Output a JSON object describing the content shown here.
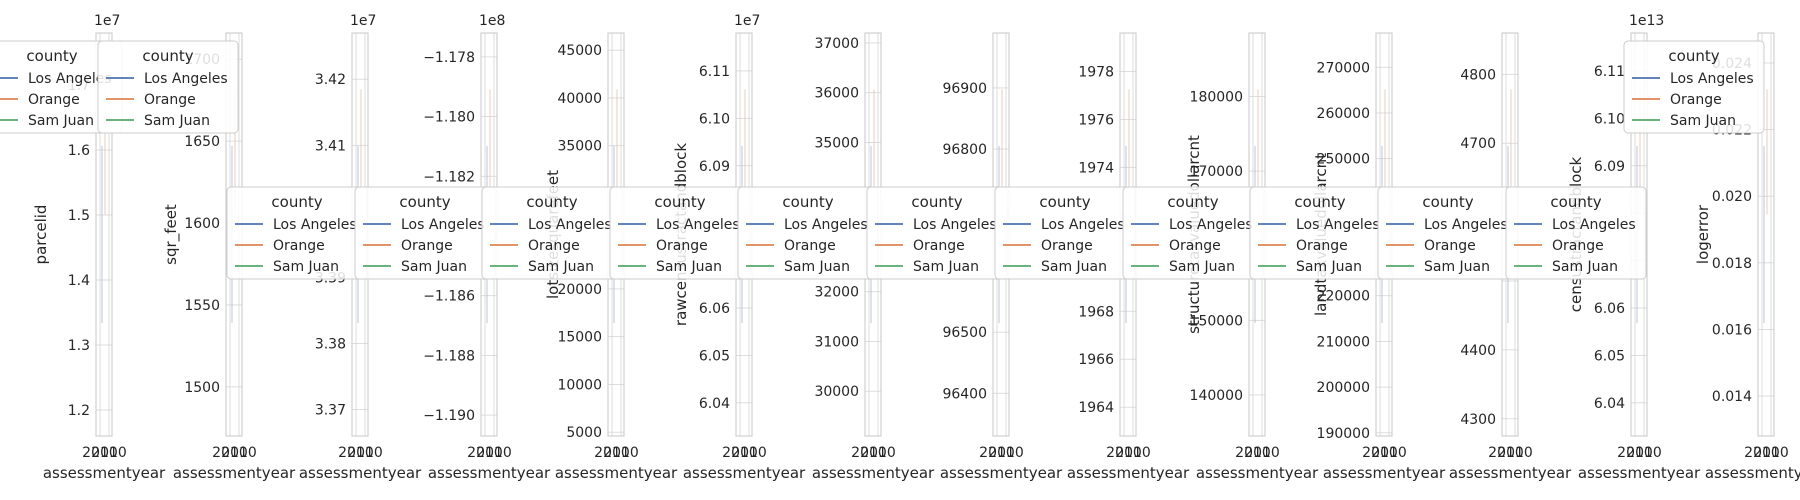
{
  "legend": {
    "title": "county",
    "entries": [
      {
        "label": "Los Angeles",
        "color": "#4c72b0"
      },
      {
        "label": "Orange",
        "color": "#dd8452"
      },
      {
        "label": "Sam Juan",
        "color": "#55a868"
      }
    ]
  },
  "chart_data": [
    {
      "type": "line",
      "xlabel": "assessmentyear",
      "ylabel": "parcelid",
      "offset": "1e7",
      "x_ticks": [
        "2010",
        "2010"
      ],
      "y_ticks": [
        {
          "value": 1.2,
          "label": "1.2"
        },
        {
          "value": 1.3,
          "label": "1.3"
        },
        {
          "value": 1.4,
          "label": "1.4"
        },
        {
          "value": 1.5,
          "label": "1.5"
        },
        {
          "value": 1.6,
          "label": "1.6"
        },
        {
          "value": 1.7,
          "label": "1.7"
        }
      ],
      "ylim": [
        1.16,
        1.78
      ],
      "legend": "top-left"
    },
    {
      "type": "line",
      "xlabel": "assessmentyear",
      "ylabel": "sqr_feet",
      "offset": "",
      "x_ticks": [
        "2010",
        "2010"
      ],
      "y_ticks": [
        {
          "value": 1500,
          "label": "1500"
        },
        {
          "value": 1550,
          "label": "1550"
        },
        {
          "value": 1600,
          "label": "1600"
        },
        {
          "value": 1650,
          "label": "1650"
        },
        {
          "value": 1700,
          "label": "1700"
        }
      ],
      "ylim": [
        1470,
        1716
      ],
      "legend": "top-left"
    },
    {
      "type": "line",
      "xlabel": "assessmentyear",
      "ylabel": "",
      "offset": "1e7",
      "x_ticks": [
        "2010",
        "2010"
      ],
      "y_ticks": [
        {
          "value": 3.37,
          "label": "3.37"
        },
        {
          "value": 3.38,
          "label": "3.38"
        },
        {
          "value": 3.39,
          "label": "3.39"
        },
        {
          "value": 3.4,
          "label": ""
        },
        {
          "value": 3.41,
          "label": "3.41"
        },
        {
          "value": 3.42,
          "label": "3.42"
        }
      ],
      "ylim": [
        3.366,
        3.427
      ],
      "legend": "center-left"
    },
    {
      "type": "line",
      "xlabel": "assessmentyear",
      "ylabel": "",
      "offset": "1e8",
      "x_ticks": [
        "2010",
        "2010"
      ],
      "y_ticks": [
        {
          "value": -1.19,
          "label": "−1.190"
        },
        {
          "value": -1.188,
          "label": "−1.188"
        },
        {
          "value": -1.186,
          "label": "−1.186"
        },
        {
          "value": -1.184,
          "label": ""
        },
        {
          "value": -1.182,
          "label": "−1.182"
        },
        {
          "value": -1.18,
          "label": "−1.180"
        },
        {
          "value": -1.178,
          "label": "−1.178"
        }
      ],
      "ylim": [
        -1.1907,
        -1.1772
      ],
      "legend": "center-left"
    },
    {
      "type": "line",
      "xlabel": "assessmentyear",
      "ylabel": "lotsizesquarefeet",
      "offset": "",
      "x_ticks": [
        "2010",
        "2010"
      ],
      "y_ticks": [
        {
          "value": 5000,
          "label": "5000"
        },
        {
          "value": 10000,
          "label": "10000"
        },
        {
          "value": 15000,
          "label": "15000"
        },
        {
          "value": 20000,
          "label": "20000"
        },
        {
          "value": 25000,
          "label": ""
        },
        {
          "value": 30000,
          "label": ""
        },
        {
          "value": 35000,
          "label": "35000"
        },
        {
          "value": 40000,
          "label": "40000"
        },
        {
          "value": 45000,
          "label": "45000"
        }
      ],
      "ylim": [
        4600,
        46800
      ],
      "legend": "center-left"
    },
    {
      "type": "line",
      "xlabel": "assessmentyear",
      "ylabel": "rawcensustractandblock",
      "offset": "1e7",
      "x_ticks": [
        "2010",
        "2010"
      ],
      "y_ticks": [
        {
          "value": 6.04,
          "label": "6.04"
        },
        {
          "value": 6.05,
          "label": "6.05"
        },
        {
          "value": 6.06,
          "label": "6.06"
        },
        {
          "value": 6.07,
          "label": ""
        },
        {
          "value": 6.08,
          "label": ""
        },
        {
          "value": 6.09,
          "label": "6.09"
        },
        {
          "value": 6.1,
          "label": "6.10"
        },
        {
          "value": 6.11,
          "label": "6.11"
        }
      ],
      "ylim": [
        6.033,
        6.118
      ],
      "legend": "center-left"
    },
    {
      "type": "line",
      "xlabel": "assessmentyear",
      "ylabel": "",
      "offset": "",
      "x_ticks": [
        "2010",
        "2010"
      ],
      "y_ticks": [
        {
          "value": 30000,
          "label": "30000"
        },
        {
          "value": 31000,
          "label": "31000"
        },
        {
          "value": 32000,
          "label": "32000"
        },
        {
          "value": 33000,
          "label": ""
        },
        {
          "value": 34000,
          "label": ""
        },
        {
          "value": 35000,
          "label": "35000"
        },
        {
          "value": 36000,
          "label": "36000"
        },
        {
          "value": 37000,
          "label": "37000"
        }
      ],
      "ylim": [
        29100,
        37200
      ],
      "legend": "center-left"
    },
    {
      "type": "line",
      "xlabel": "assessmentyear",
      "ylabel": "",
      "offset": "",
      "x_ticks": [
        "2010",
        "2010"
      ],
      "y_ticks": [
        {
          "value": 96400,
          "label": "96400"
        },
        {
          "value": 96500,
          "label": "96500"
        },
        {
          "value": 96600,
          "label": ""
        },
        {
          "value": 96700,
          "label": ""
        },
        {
          "value": 96800,
          "label": "96800"
        },
        {
          "value": 96900,
          "label": "96900"
        }
      ],
      "ylim": [
        96330,
        96990
      ],
      "legend": "center-left"
    },
    {
      "type": "line",
      "xlabel": "assessmentyear",
      "ylabel": "",
      "offset": "",
      "x_ticks": [
        "2010",
        "2010"
      ],
      "y_ticks": [
        {
          "value": 1964,
          "label": "1964"
        },
        {
          "value": 1966,
          "label": "1966"
        },
        {
          "value": 1968,
          "label": "1968"
        },
        {
          "value": 1970,
          "label": ""
        },
        {
          "value": 1972,
          "label": ""
        },
        {
          "value": 1974,
          "label": "1974"
        },
        {
          "value": 1976,
          "label": "1976"
        },
        {
          "value": 1978,
          "label": "1978"
        }
      ],
      "ylim": [
        1962.8,
        1979.6
      ],
      "legend": "center-left"
    },
    {
      "type": "line",
      "xlabel": "assessmentyear",
      "ylabel": "structuretaxvaluedollarcnt",
      "offset": "",
      "x_ticks": [
        "2010",
        "2010"
      ],
      "y_ticks": [
        {
          "value": 140000,
          "label": "140000"
        },
        {
          "value": 150000,
          "label": "150000"
        },
        {
          "value": 160000,
          "label": ""
        },
        {
          "value": 170000,
          "label": "170000"
        },
        {
          "value": 180000,
          "label": "180000"
        }
      ],
      "ylim": [
        134500,
        188500
      ],
      "legend": "center-left"
    },
    {
      "type": "line",
      "xlabel": "assessmentyear",
      "ylabel": "landtaxvaluedollarcnt",
      "offset": "",
      "x_ticks": [
        "2010",
        "2010"
      ],
      "y_ticks": [
        {
          "value": 190000,
          "label": "190000"
        },
        {
          "value": 200000,
          "label": "200000"
        },
        {
          "value": 210000,
          "label": "210000"
        },
        {
          "value": 220000,
          "label": "220000"
        },
        {
          "value": 230000,
          "label": ""
        },
        {
          "value": 240000,
          "label": ""
        },
        {
          "value": 250000,
          "label": "250000"
        },
        {
          "value": 260000,
          "label": "260000"
        },
        {
          "value": 270000,
          "label": "270000"
        }
      ],
      "ylim": [
        189300,
        277500
      ],
      "legend": "center-left"
    },
    {
      "type": "line",
      "xlabel": "assessmentyear",
      "ylabel": "",
      "offset": "",
      "x_ticks": [
        "2010",
        "2010"
      ],
      "y_ticks": [
        {
          "value": 4300,
          "label": "4300"
        },
        {
          "value": 4400,
          "label": "4400"
        },
        {
          "value": 4500,
          "label": ""
        },
        {
          "value": 4600,
          "label": ""
        },
        {
          "value": 4700,
          "label": "4700"
        },
        {
          "value": 4800,
          "label": "4800"
        }
      ],
      "ylim": [
        4275,
        4860
      ],
      "legend": "center-left"
    },
    {
      "type": "line",
      "xlabel": "assessmentyear",
      "ylabel": "censustractandblock",
      "offset": "1e13",
      "x_ticks": [
        "2010",
        "2010"
      ],
      "y_ticks": [
        {
          "value": 6.04,
          "label": "6.04"
        },
        {
          "value": 6.05,
          "label": "6.05"
        },
        {
          "value": 6.06,
          "label": "6.06"
        },
        {
          "value": 6.07,
          "label": ""
        },
        {
          "value": 6.08,
          "label": ""
        },
        {
          "value": 6.09,
          "label": "6.09"
        },
        {
          "value": 6.1,
          "label": "6.10"
        },
        {
          "value": 6.11,
          "label": "6.11"
        }
      ],
      "ylim": [
        6.033,
        6.118
      ],
      "legend": "center-left"
    },
    {
      "type": "line",
      "xlabel": "assessmentyear",
      "ylabel": "logerror",
      "offset": "",
      "x_ticks": [
        "2010",
        "2010"
      ],
      "y_ticks": [
        {
          "value": 0.014,
          "label": "0.014"
        },
        {
          "value": 0.016,
          "label": "0.016"
        },
        {
          "value": 0.018,
          "label": "0.018"
        },
        {
          "value": 0.02,
          "label": "0.020"
        },
        {
          "value": 0.022,
          "label": "0.022"
        },
        {
          "value": 0.024,
          "label": "0.024"
        }
      ],
      "ylim": [
        0.0128,
        0.0249
      ],
      "legend": "top-left"
    }
  ]
}
